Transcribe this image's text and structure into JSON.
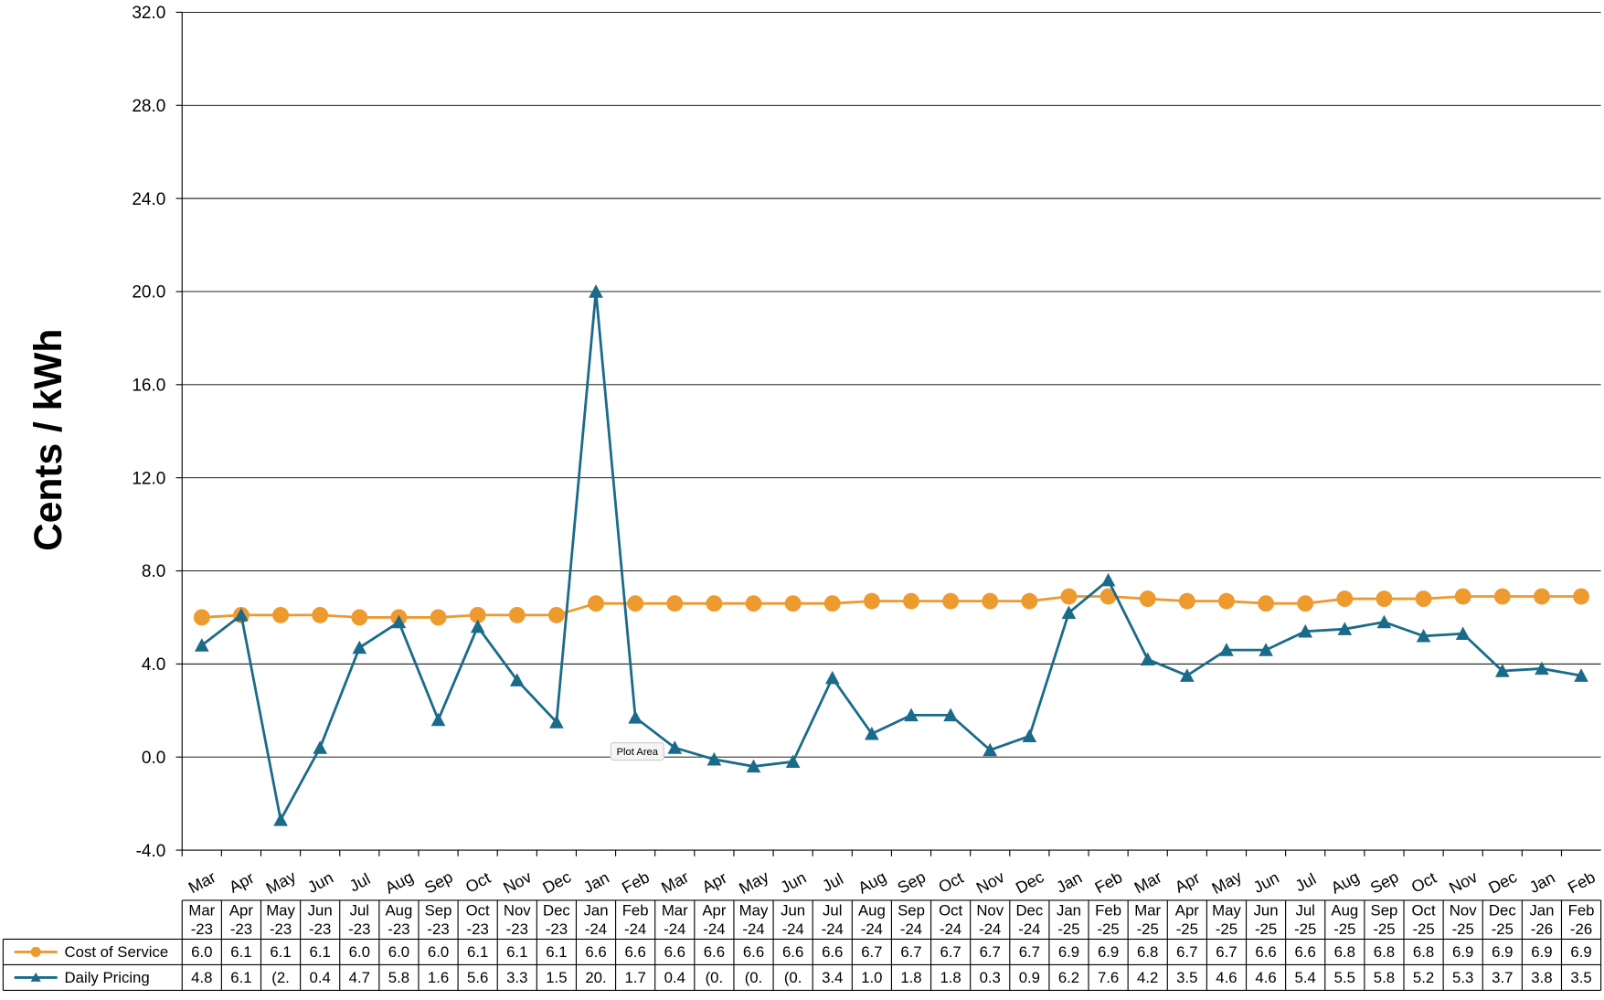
{
  "chart_data": {
    "type": "line",
    "y_label": "Cents / kWh",
    "categories": [
      "Mar",
      "Apr",
      "May",
      "Jun",
      "Jul",
      "Aug",
      "Sep",
      "Oct",
      "Nov",
      "Dec",
      "Jan",
      "Feb",
      "Mar",
      "Apr",
      "May",
      "Jun",
      "Jul",
      "Aug",
      "Sep",
      "Oct",
      "Nov",
      "Dec",
      "Jan",
      "Feb",
      "Mar",
      "Apr",
      "May",
      "Jun",
      "Jul",
      "Aug",
      "Sep",
      "Oct",
      "Nov",
      "Dec",
      "Jan",
      "Feb"
    ],
    "table_headers": [
      "Mar-23",
      "Apr-23",
      "May-23",
      "Jun-23",
      "Jul-23",
      "Aug-23",
      "Sep-23",
      "Oct-23",
      "Nov-23",
      "Dec-23",
      "Jan-24",
      "Feb-24",
      "Mar-24",
      "Apr-24",
      "May-24",
      "Jun-24",
      "Jul-24",
      "Aug-24",
      "Sep-24",
      "Oct-24",
      "Nov-24",
      "Dec-24",
      "Jan-25",
      "Feb-25",
      "Mar-25",
      "Apr-25",
      "May-25",
      "Jun-25",
      "Jul-25",
      "Aug-25",
      "Sep-25",
      "Oct-25",
      "Nov-25",
      "Dec-25",
      "Jan-26",
      "Feb-26"
    ],
    "series": [
      {
        "name": "Cost of Service",
        "color": "#ed9a2f",
        "marker": "circle",
        "values": [
          6.0,
          6.1,
          6.1,
          6.1,
          6.0,
          6.0,
          6.0,
          6.1,
          6.1,
          6.1,
          6.6,
          6.6,
          6.6,
          6.6,
          6.6,
          6.6,
          6.6,
          6.7,
          6.7,
          6.7,
          6.7,
          6.7,
          6.9,
          6.9,
          6.8,
          6.7,
          6.7,
          6.6,
          6.6,
          6.8,
          6.8,
          6.8,
          6.9,
          6.9,
          6.9,
          6.9
        ],
        "value_labels": [
          "6.0",
          "6.1",
          "6.1",
          "6.1",
          "6.0",
          "6.0",
          "6.0",
          "6.1",
          "6.1",
          "6.1",
          "6.6",
          "6.6",
          "6.6",
          "6.6",
          "6.6",
          "6.6",
          "6.6",
          "6.7",
          "6.7",
          "6.7",
          "6.7",
          "6.7",
          "6.9",
          "6.9",
          "6.8",
          "6.7",
          "6.7",
          "6.6",
          "6.6",
          "6.8",
          "6.8",
          "6.8",
          "6.9",
          "6.9",
          "6.9",
          "6.9"
        ]
      },
      {
        "name": "Daily Pricing",
        "color": "#1a6b8a",
        "marker": "triangle",
        "values": [
          4.8,
          6.1,
          -2.7,
          0.4,
          4.7,
          5.8,
          1.6,
          5.6,
          3.3,
          1.5,
          20.0,
          1.7,
          0.4,
          -0.1,
          -0.4,
          -0.2,
          3.4,
          1.0,
          1.8,
          1.8,
          0.3,
          0.9,
          6.2,
          7.6,
          4.2,
          3.5,
          4.6,
          4.6,
          5.4,
          5.5,
          5.8,
          5.2,
          5.3,
          3.7,
          3.8,
          3.5
        ],
        "value_labels": [
          "4.8",
          "6.1",
          "(2.",
          "0.4",
          "4.7",
          "5.8",
          "1.6",
          "5.6",
          "3.3",
          "1.5",
          "20.",
          "1.7",
          "0.4",
          "(0.",
          "(0.",
          "(0.",
          "3.4",
          "1.0",
          "1.8",
          "1.8",
          "0.3",
          "0.9",
          "6.2",
          "7.6",
          "4.2",
          "3.5",
          "4.6",
          "4.6",
          "5.4",
          "5.5",
          "5.8",
          "5.2",
          "5.3",
          "3.7",
          "3.8",
          "3.5"
        ]
      }
    ],
    "ylim": [
      -4,
      32
    ],
    "yticks": [
      {
        "value": -4,
        "label": "-4.0"
      },
      {
        "value": 0,
        "label": "0.0"
      },
      {
        "value": 4,
        "label": "4.0"
      },
      {
        "value": 8,
        "label": "8.0"
      },
      {
        "value": 12,
        "label": "12.0"
      },
      {
        "value": 16,
        "label": "16.0"
      },
      {
        "value": 20,
        "label": "20.0"
      },
      {
        "value": 24,
        "label": "24.0"
      },
      {
        "value": 28,
        "label": "28.0"
      },
      {
        "value": 32,
        "label": "32.0"
      }
    ],
    "grid": true,
    "tooltip": "Plot Area"
  }
}
